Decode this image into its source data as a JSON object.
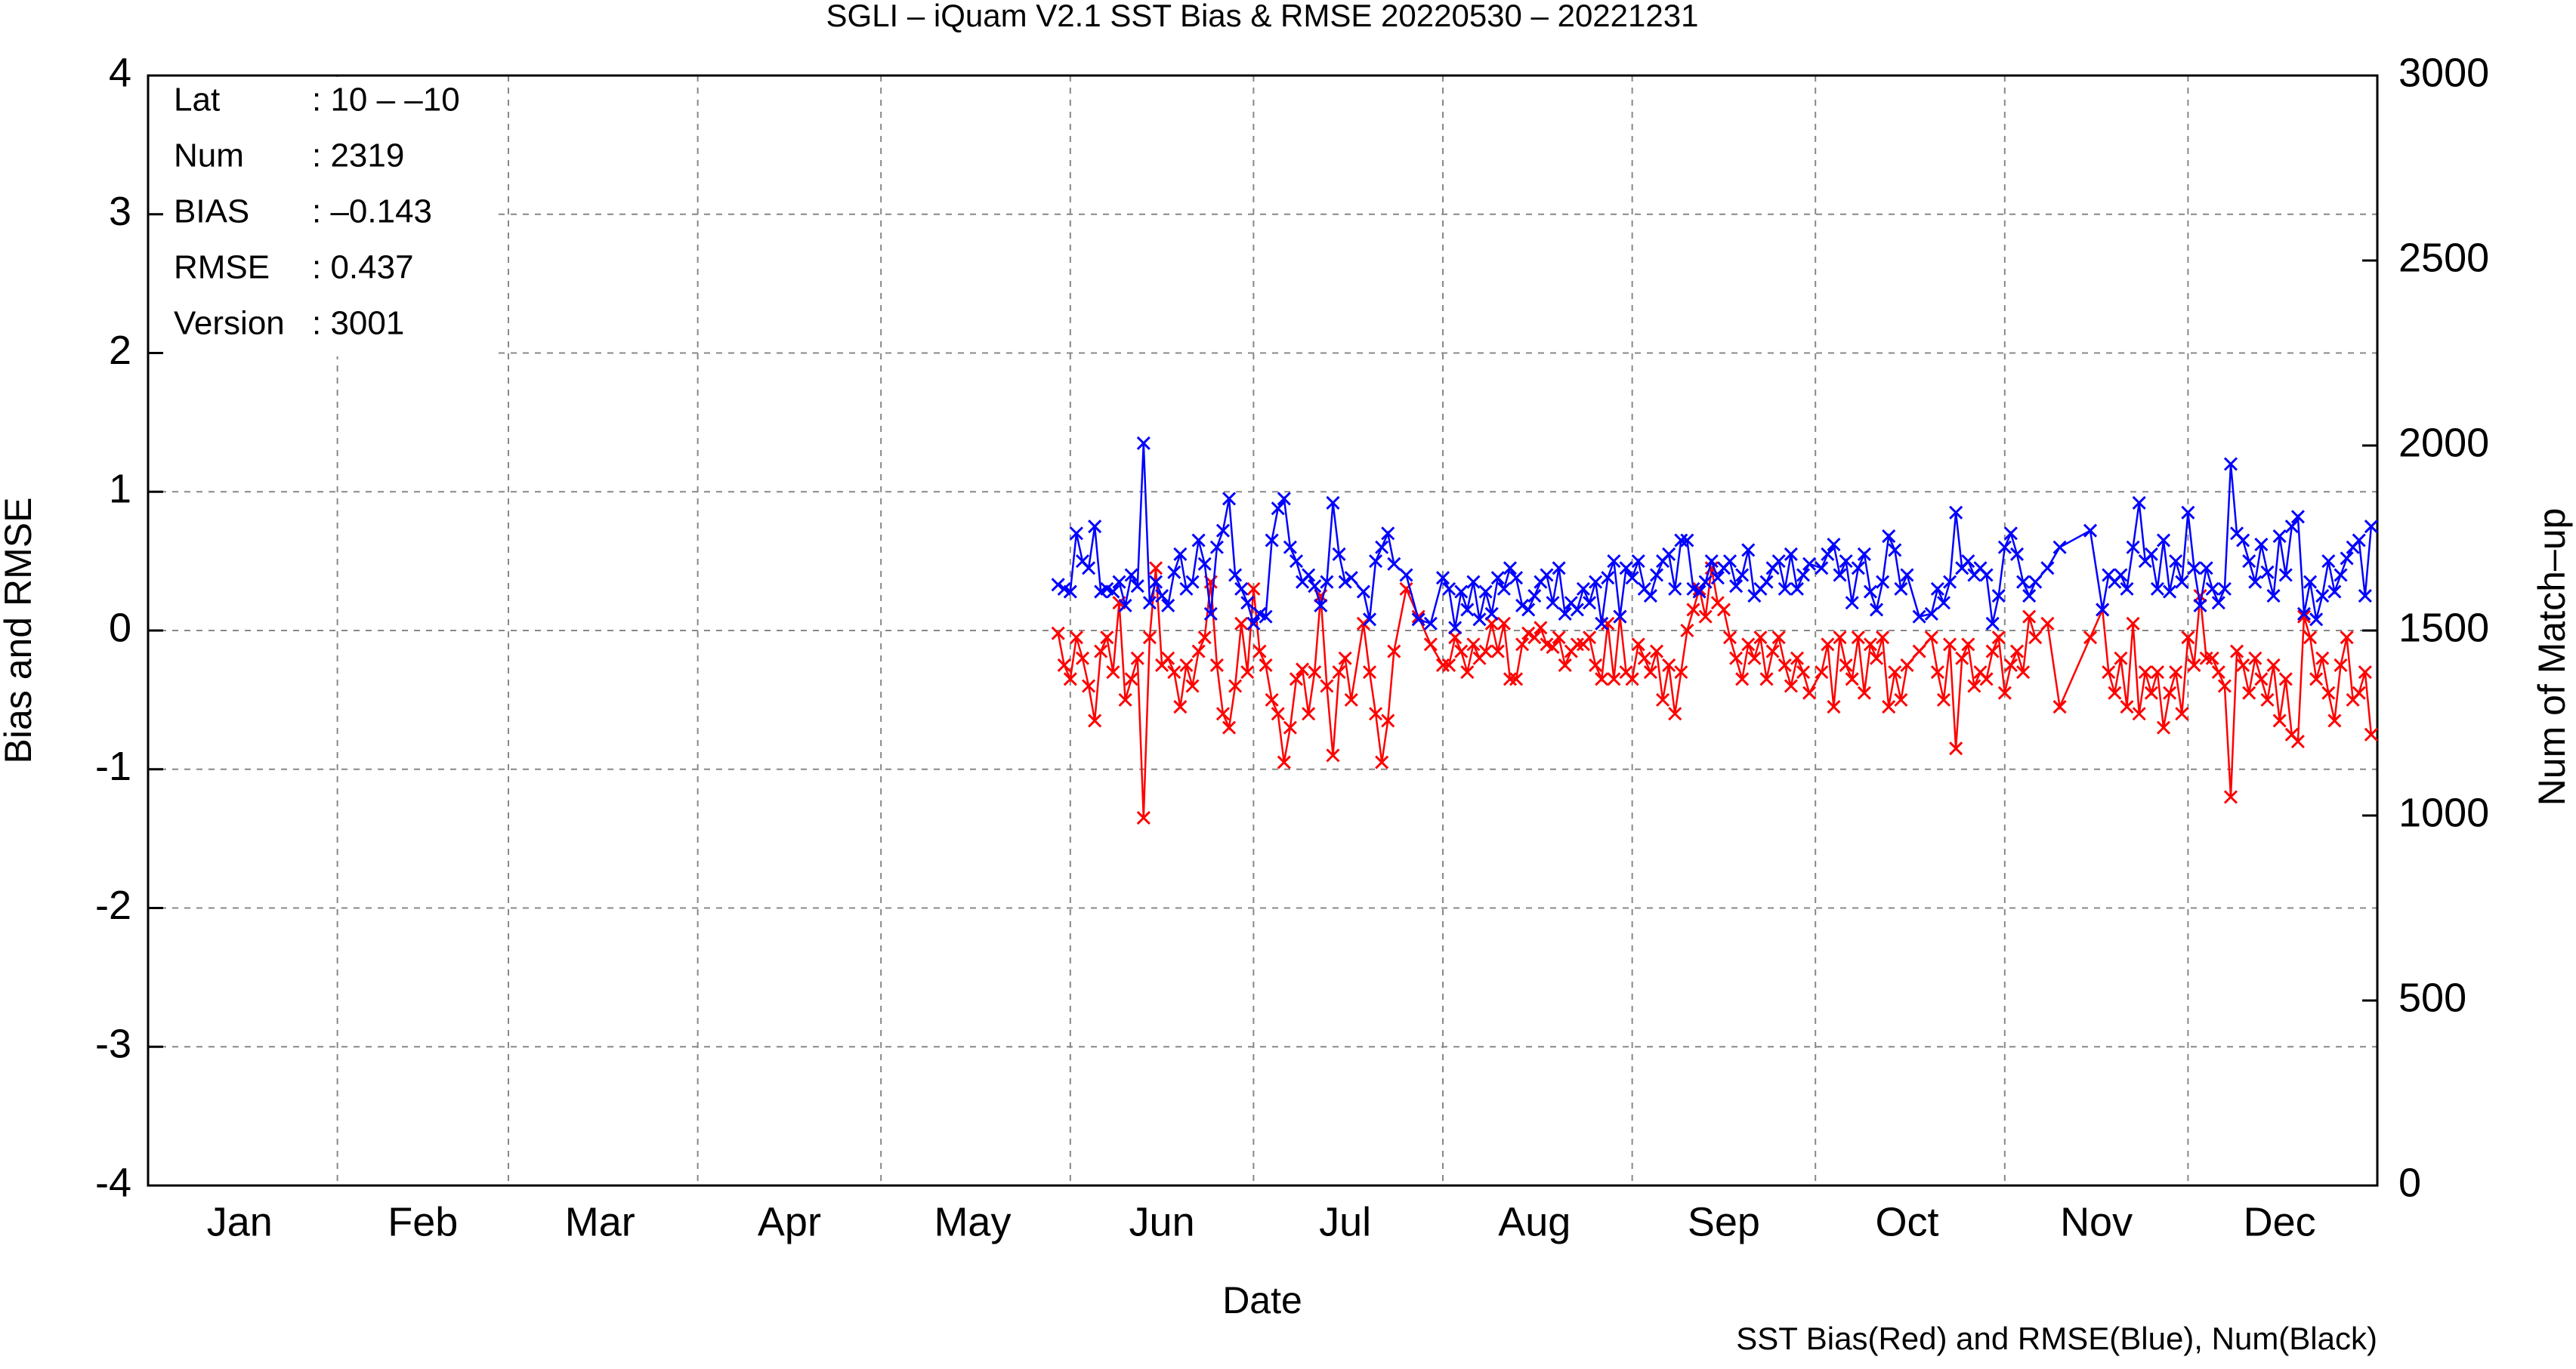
{
  "chart_data": {
    "type": "line",
    "title": "SGLI – iQuam V2.1 SST Bias & RMSE 20220530 – 20221231",
    "x_label": "Date",
    "y_label": "Bias and RMSE",
    "y2_label": "Num of Match–up",
    "note": "SST Bias(Red) and RMSE(Blue), Num(Black)",
    "stats": [
      [
        "Lat",
        ": 10 – –10"
      ],
      [
        "Num",
        ": 2319"
      ],
      [
        "BIAS",
        ": –0.143"
      ],
      [
        "RMSE",
        ": 0.437"
      ],
      [
        "Version",
        ": 3001"
      ]
    ],
    "xlim": [
      0,
      365
    ],
    "xticks": [
      {
        "value": 15,
        "label": "Jan"
      },
      {
        "value": 45,
        "label": "Feb"
      },
      {
        "value": 74,
        "label": "Mar"
      },
      {
        "value": 105,
        "label": "Apr"
      },
      {
        "value": 135,
        "label": "May"
      },
      {
        "value": 166,
        "label": "Jun"
      },
      {
        "value": 196,
        "label": "Jul"
      },
      {
        "value": 227,
        "label": "Aug"
      },
      {
        "value": 258,
        "label": "Sep"
      },
      {
        "value": 288,
        "label": "Oct"
      },
      {
        "value": 319,
        "label": "Nov"
      },
      {
        "value": 349,
        "label": "Dec"
      }
    ],
    "xgrid": [
      31,
      59,
      90,
      120,
      151,
      181,
      212,
      243,
      273,
      304,
      334
    ],
    "ylim": [
      -4,
      4
    ],
    "yticks": [
      -4,
      -3,
      -2,
      -1,
      0,
      1,
      2,
      3,
      4
    ],
    "y2lim": [
      0,
      3000
    ],
    "y2ticks": [
      0,
      500,
      1000,
      1500,
      2000,
      2500,
      3000
    ],
    "grid": true,
    "marker": "x",
    "x": [
      149,
      150,
      151,
      152,
      153,
      154,
      155,
      156,
      157,
      158,
      159,
      160,
      161,
      162,
      163,
      164,
      165,
      166,
      167,
      168,
      169,
      170,
      171,
      172,
      173,
      174,
      175,
      176,
      177,
      178,
      179,
      180,
      181,
      182,
      183,
      184,
      185,
      186,
      187,
      188,
      189,
      190,
      191,
      192,
      193,
      194,
      195,
      196,
      197,
      199,
      200,
      201,
      202,
      203,
      204,
      206,
      208,
      210,
      212,
      213,
      214,
      215,
      216,
      217,
      218,
      219,
      220,
      221,
      222,
      223,
      224,
      225,
      226,
      227,
      228,
      229,
      230,
      231,
      232,
      233,
      234,
      235,
      236,
      237,
      238,
      239,
      240,
      241,
      242,
      243,
      244,
      245,
      246,
      247,
      248,
      249,
      250,
      251,
      252,
      253,
      254,
      255,
      256,
      257,
      258,
      259,
      260,
      261,
      262,
      263,
      264,
      265,
      266,
      267,
      268,
      269,
      270,
      271,
      272,
      274,
      275,
      276,
      277,
      278,
      279,
      280,
      281,
      282,
      283,
      284,
      285,
      286,
      287,
      288,
      290,
      292,
      293,
      294,
      295,
      296,
      297,
      298,
      299,
      300,
      301,
      302,
      303,
      304,
      305,
      306,
      307,
      308,
      309,
      311,
      313,
      318,
      320,
      321,
      322,
      323,
      324,
      325,
      326,
      327,
      328,
      329,
      330,
      331,
      332,
      333,
      334,
      335,
      336,
      337,
      338,
      339,
      340,
      341,
      342,
      343,
      344,
      345,
      346,
      347,
      348,
      349,
      350,
      351,
      352,
      353,
      354,
      355,
      356,
      357,
      358,
      359,
      360,
      361,
      362,
      363,
      364
    ],
    "series": [
      {
        "color": "#ff0000",
        "values": [
          -0.02,
          -0.25,
          -0.35,
          -0.05,
          -0.2,
          -0.4,
          -0.65,
          -0.15,
          -0.05,
          -0.3,
          0.2,
          -0.5,
          -0.35,
          -0.2,
          -1.35,
          -0.05,
          0.45,
          -0.25,
          -0.2,
          -0.3,
          -0.55,
          -0.25,
          -0.4,
          -0.15,
          -0.05,
          0.35,
          -0.25,
          -0.6,
          -0.7,
          -0.4,
          0.05,
          -0.3,
          0.3,
          -0.15,
          -0.25,
          -0.5,
          -0.6,
          -0.95,
          -0.7,
          -0.35,
          -0.28,
          -0.6,
          -0.3,
          0.25,
          -0.4,
          -0.9,
          -0.3,
          -0.2,
          -0.5,
          0.05,
          -0.3,
          -0.6,
          -0.95,
          -0.65,
          -0.15,
          0.3,
          0.1,
          -0.1,
          -0.25,
          -0.25,
          -0.05,
          -0.15,
          -0.3,
          -0.1,
          -0.2,
          -0.15,
          0.05,
          -0.15,
          0.05,
          -0.35,
          -0.35,
          -0.1,
          -0.02,
          -0.05,
          0.02,
          -0.1,
          -0.12,
          -0.05,
          -0.25,
          -0.15,
          -0.1,
          -0.1,
          -0.05,
          -0.25,
          -0.35,
          0.05,
          -0.35,
          0.1,
          -0.3,
          -0.35,
          -0.1,
          -0.2,
          -0.3,
          -0.15,
          -0.5,
          -0.25,
          -0.6,
          -0.3,
          0.0,
          0.15,
          0.3,
          0.1,
          0.45,
          0.2,
          0.15,
          -0.05,
          -0.2,
          -0.35,
          -0.1,
          -0.2,
          -0.05,
          -0.35,
          -0.15,
          -0.05,
          -0.25,
          -0.4,
          -0.2,
          -0.3,
          -0.45,
          -0.3,
          -0.1,
          -0.55,
          -0.05,
          -0.25,
          -0.35,
          -0.05,
          -0.45,
          -0.1,
          -0.2,
          -0.05,
          -0.55,
          -0.3,
          -0.5,
          -0.25,
          -0.15,
          -0.05,
          -0.3,
          -0.5,
          -0.1,
          -0.85,
          -0.2,
          -0.1,
          -0.4,
          -0.3,
          -0.35,
          -0.15,
          -0.05,
          -0.45,
          -0.25,
          -0.15,
          -0.3,
          0.1,
          -0.05,
          0.05,
          -0.55,
          -0.05,
          0.15,
          -0.3,
          -0.45,
          -0.2,
          -0.55,
          0.05,
          -0.6,
          -0.3,
          -0.45,
          -0.3,
          -0.7,
          -0.45,
          -0.3,
          -0.6,
          -0.05,
          -0.25,
          0.25,
          -0.2,
          -0.2,
          -0.3,
          -0.4,
          -1.2,
          -0.15,
          -0.25,
          -0.45,
          -0.2,
          -0.35,
          -0.5,
          -0.25,
          -0.65,
          -0.35,
          -0.75,
          -0.8,
          0.1,
          -0.05,
          -0.35,
          -0.2,
          -0.45,
          -0.65,
          -0.25,
          -0.05,
          -0.5,
          -0.45,
          -0.3,
          -0.75
        ]
      },
      {
        "color": "#0000ff",
        "values": [
          0.33,
          0.3,
          0.28,
          0.7,
          0.5,
          0.45,
          0.75,
          0.28,
          0.3,
          0.28,
          0.35,
          0.18,
          0.4,
          0.32,
          1.35,
          0.2,
          0.35,
          0.25,
          0.18,
          0.42,
          0.55,
          0.3,
          0.35,
          0.65,
          0.48,
          0.12,
          0.6,
          0.72,
          0.95,
          0.4,
          0.3,
          0.2,
          0.05,
          0.12,
          0.1,
          0.65,
          0.88,
          0.95,
          0.6,
          0.5,
          0.35,
          0.4,
          0.32,
          0.18,
          0.35,
          0.92,
          0.55,
          0.35,
          0.38,
          0.28,
          0.08,
          0.5,
          0.6,
          0.7,
          0.48,
          0.4,
          0.08,
          0.05,
          0.38,
          0.3,
          0.02,
          0.28,
          0.15,
          0.35,
          0.08,
          0.28,
          0.12,
          0.38,
          0.3,
          0.45,
          0.38,
          0.18,
          0.15,
          0.25,
          0.35,
          0.4,
          0.2,
          0.45,
          0.12,
          0.2,
          0.15,
          0.3,
          0.2,
          0.35,
          0.05,
          0.38,
          0.5,
          0.1,
          0.45,
          0.38,
          0.5,
          0.3,
          0.25,
          0.4,
          0.5,
          0.55,
          0.3,
          0.65,
          0.65,
          0.3,
          0.28,
          0.35,
          0.5,
          0.38,
          0.45,
          0.5,
          0.32,
          0.4,
          0.58,
          0.25,
          0.3,
          0.35,
          0.45,
          0.5,
          0.3,
          0.55,
          0.3,
          0.4,
          0.48,
          0.45,
          0.55,
          0.62,
          0.4,
          0.5,
          0.2,
          0.45,
          0.55,
          0.28,
          0.15,
          0.35,
          0.68,
          0.58,
          0.3,
          0.4,
          0.1,
          0.12,
          0.3,
          0.2,
          0.35,
          0.85,
          0.45,
          0.5,
          0.4,
          0.45,
          0.4,
          0.05,
          0.25,
          0.6,
          0.7,
          0.55,
          0.35,
          0.25,
          0.35,
          0.45,
          0.6,
          0.72,
          0.15,
          0.4,
          0.35,
          0.4,
          0.3,
          0.6,
          0.92,
          0.5,
          0.55,
          0.3,
          0.65,
          0.28,
          0.5,
          0.35,
          0.85,
          0.45,
          0.18,
          0.45,
          0.3,
          0.2,
          0.3,
          1.2,
          0.7,
          0.65,
          0.5,
          0.35,
          0.62,
          0.42,
          0.25,
          0.68,
          0.4,
          0.75,
          0.82,
          0.12,
          0.35,
          0.08,
          0.25,
          0.5,
          0.28,
          0.4,
          0.52,
          0.6,
          0.65,
          0.25,
          0.75
        ]
      }
    ]
  }
}
